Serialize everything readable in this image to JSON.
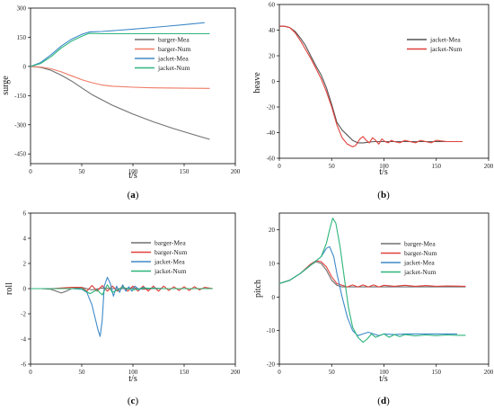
{
  "chart_data": [
    {
      "type": "line",
      "panel_label": "(a)",
      "xlabel": "t/s",
      "ylabel": "surge",
      "xlim": [
        0,
        200
      ],
      "ylim": [
        -500,
        300
      ],
      "xticks": [
        0,
        50,
        100,
        150,
        200
      ],
      "yticks": [
        -450,
        -300,
        -150,
        0,
        150,
        300
      ],
      "legend": "right",
      "series": [
        {
          "name": "barger-Mea",
          "color": "#707070",
          "x": [
            0,
            10,
            20,
            30,
            40,
            50,
            60,
            80,
            100,
            120,
            140,
            160,
            175
          ],
          "y": [
            0,
            -5,
            -20,
            -45,
            -75,
            -110,
            -145,
            -200,
            -245,
            -285,
            -320,
            -352,
            -375
          ]
        },
        {
          "name": "barger-Num",
          "color": "#f07a65",
          "x": [
            0,
            10,
            20,
            30,
            40,
            50,
            60,
            70,
            80,
            100,
            120,
            150,
            175
          ],
          "y": [
            0,
            -3,
            -12,
            -28,
            -48,
            -68,
            -84,
            -96,
            -102,
            -107,
            -110,
            -112,
            -113
          ]
        },
        {
          "name": "jacket-Mea",
          "color": "#3e8ac9",
          "x": [
            0,
            10,
            20,
            30,
            40,
            50,
            58,
            70,
            100,
            130,
            150,
            170
          ],
          "y": [
            0,
            20,
            60,
            105,
            140,
            165,
            178,
            180,
            192,
            205,
            215,
            225
          ]
        },
        {
          "name": "jacket-Num",
          "color": "#2cb57a",
          "x": [
            0,
            10,
            20,
            30,
            40,
            50,
            57,
            70,
            100,
            140,
            175
          ],
          "y": [
            0,
            15,
            50,
            95,
            130,
            155,
            170,
            168,
            168,
            168,
            168
          ]
        }
      ]
    },
    {
      "type": "line",
      "panel_label": "(b)",
      "xlabel": "t/s",
      "ylabel": "heave",
      "xlim": [
        0,
        200
      ],
      "ylim": [
        -60,
        60
      ],
      "xticks": [
        0,
        50,
        100,
        150,
        200
      ],
      "yticks": [
        -60,
        -40,
        -20,
        0,
        20,
        40,
        60
      ],
      "legend": "top-right",
      "series": [
        {
          "name": "jacket-Mea",
          "color": "#555555",
          "x": [
            0,
            5,
            10,
            15,
            20,
            25,
            30,
            35,
            40,
            45,
            50,
            55,
            60,
            65,
            70,
            75,
            80,
            90,
            100,
            120,
            140,
            160,
            175
          ],
          "y": [
            43,
            43,
            42,
            39,
            34,
            28,
            20,
            12,
            5,
            -5,
            -18,
            -32,
            -38,
            -42,
            -46,
            -48,
            -48,
            -47,
            -47,
            -47,
            -47,
            -47,
            -47
          ]
        },
        {
          "name": "jacket-Num",
          "color": "#e0403a",
          "x": [
            0,
            5,
            10,
            15,
            20,
            25,
            30,
            35,
            40,
            45,
            50,
            55,
            60,
            65,
            70,
            73,
            77,
            80,
            83,
            86,
            89,
            92,
            95,
            98,
            101,
            104,
            107,
            110,
            115,
            120,
            125,
            130,
            135,
            140,
            145,
            150,
            160,
            175
          ],
          "y": [
            43,
            43,
            42,
            38,
            32,
            25,
            18,
            10,
            2,
            -8,
            -20,
            -34,
            -44,
            -49,
            -51,
            -50,
            -45,
            -43,
            -46,
            -48,
            -44,
            -46,
            -49,
            -45,
            -47,
            -48,
            -46,
            -47,
            -48,
            -46,
            -47,
            -48,
            -46,
            -47,
            -48,
            -46,
            -47,
            -47
          ]
        }
      ]
    },
    {
      "type": "line",
      "panel_label": "(c)",
      "xlabel": "t/s",
      "ylabel": "roll",
      "xlim": [
        0,
        200
      ],
      "ylim": [
        -6,
        6
      ],
      "xticks": [
        0,
        50,
        100,
        150,
        200
      ],
      "yticks": [
        -6,
        -4,
        -2,
        0,
        2,
        4,
        6
      ],
      "legend": "top-right",
      "series": [
        {
          "name": "barger-Mea",
          "color": "#707070",
          "x": [
            0,
            10,
            20,
            30,
            35,
            40,
            50,
            60,
            70,
            80,
            90,
            100,
            110,
            120,
            130,
            140,
            150,
            160,
            170,
            178
          ],
          "y": [
            0,
            0,
            -0.05,
            -0.35,
            -0.2,
            0,
            0.1,
            -0.1,
            0.05,
            0,
            0,
            0.05,
            -0.05,
            0,
            0,
            0,
            0,
            0,
            0,
            0
          ]
        },
        {
          "name": "barger-Num",
          "color": "#e0403a",
          "x": [
            0,
            10,
            20,
            30,
            40,
            50,
            55,
            60,
            65,
            70,
            75,
            80,
            85,
            90,
            95,
            100,
            105,
            110,
            115,
            120,
            125,
            130,
            135,
            140,
            145,
            150,
            155,
            160,
            165,
            170,
            178
          ],
          "y": [
            0,
            0,
            0,
            0.05,
            0.1,
            0.1,
            -0.2,
            0.25,
            -0.2,
            0.25,
            -0.2,
            0.2,
            -0.2,
            0.2,
            -0.2,
            0.2,
            -0.2,
            0.2,
            -0.2,
            0.2,
            -0.2,
            0.2,
            -0.15,
            0.15,
            -0.15,
            0.15,
            -0.15,
            0.15,
            -0.1,
            0.1,
            0
          ]
        },
        {
          "name": "jacket-Mea",
          "color": "#3e8ac9",
          "x": [
            0,
            20,
            40,
            50,
            55,
            60,
            63,
            66,
            68,
            70,
            72,
            75,
            78,
            81,
            84,
            87,
            90,
            93,
            96,
            99,
            102,
            106,
            110,
            115,
            120,
            130,
            140,
            150,
            160,
            170,
            178
          ],
          "y": [
            0,
            0,
            0,
            -0.05,
            -0.3,
            -1.3,
            -2.3,
            -3.3,
            -3.8,
            -2.5,
            0.2,
            0.9,
            0.4,
            -0.6,
            0.2,
            -0.3,
            0.3,
            -0.2,
            0.15,
            -0.2,
            0.2,
            -0.1,
            0.1,
            0,
            0.05,
            0,
            0,
            0,
            0,
            0,
            0
          ]
        },
        {
          "name": "jacket-Num",
          "color": "#2cb57a",
          "x": [
            0,
            20,
            40,
            50,
            58,
            65,
            70,
            75,
            80,
            90,
            100,
            110,
            130,
            150,
            178
          ],
          "y": [
            0,
            0,
            0,
            0,
            -0.4,
            -0.1,
            -0.5,
            0.3,
            -0.3,
            0.1,
            -0.1,
            0.05,
            0,
            0,
            0
          ]
        }
      ]
    },
    {
      "type": "line",
      "panel_label": "(d)",
      "xlabel": "t/s",
      "ylabel": "pitch",
      "xlim": [
        0,
        200
      ],
      "ylim": [
        -20,
        25
      ],
      "xticks": [
        0,
        50,
        100,
        150,
        200
      ],
      "yticks": [
        -20,
        -10,
        0,
        10,
        20
      ],
      "legend": "right",
      "series": [
        {
          "name": "barger-Mea",
          "color": "#707070",
          "x": [
            0,
            10,
            20,
            30,
            35,
            40,
            45,
            50,
            55,
            60,
            70,
            80,
            100,
            130,
            160,
            178
          ],
          "y": [
            4,
            5,
            7,
            9.5,
            10.5,
            10,
            8,
            5,
            3.5,
            3,
            3,
            3,
            3,
            3,
            3,
            3
          ]
        },
        {
          "name": "barger-Num",
          "color": "#e0403a",
          "x": [
            0,
            10,
            20,
            30,
            35,
            40,
            45,
            50,
            55,
            60,
            65,
            70,
            75,
            80,
            85,
            90,
            95,
            100,
            110,
            120,
            130,
            140,
            150,
            160,
            178
          ],
          "y": [
            4,
            5,
            7,
            9.8,
            10.8,
            10.5,
            9,
            6,
            4,
            3.5,
            3,
            3.6,
            3,
            3.6,
            3,
            3.6,
            3,
            3.5,
            3.2,
            3.5,
            3.2,
            3.4,
            3.2,
            3.3,
            3.2
          ]
        },
        {
          "name": "jacket-Mea",
          "color": "#3e8ac9",
          "x": [
            0,
            10,
            20,
            30,
            40,
            45,
            48,
            52,
            55,
            60,
            65,
            70,
            75,
            80,
            85,
            90,
            95,
            100,
            110,
            120,
            130,
            140,
            150,
            160,
            170
          ],
          "y": [
            4,
            5,
            7,
            9.5,
            12,
            14.5,
            15,
            12,
            7,
            0,
            -6,
            -10,
            -11.5,
            -11,
            -10.5,
            -11,
            -11.5,
            -11,
            -11.2,
            -11,
            -11,
            -11,
            -11,
            -11,
            -11
          ]
        },
        {
          "name": "jacket-Num",
          "color": "#2cb57a",
          "x": [
            0,
            10,
            20,
            30,
            40,
            45,
            48,
            51,
            54,
            58,
            62,
            66,
            70,
            75,
            80,
            84,
            88,
            92,
            96,
            100,
            105,
            110,
            115,
            120,
            130,
            140,
            150,
            160,
            170,
            178
          ],
          "y": [
            4,
            5,
            7,
            9.5,
            12,
            16,
            20,
            23.5,
            22,
            15,
            6,
            -3,
            -9,
            -12,
            -13.5,
            -12.5,
            -11,
            -12,
            -11.5,
            -11,
            -12,
            -11.2,
            -11.8,
            -11.2,
            -11.6,
            -11.3,
            -11.5,
            -11.3,
            -11.4,
            -11.4
          ]
        }
      ]
    }
  ]
}
